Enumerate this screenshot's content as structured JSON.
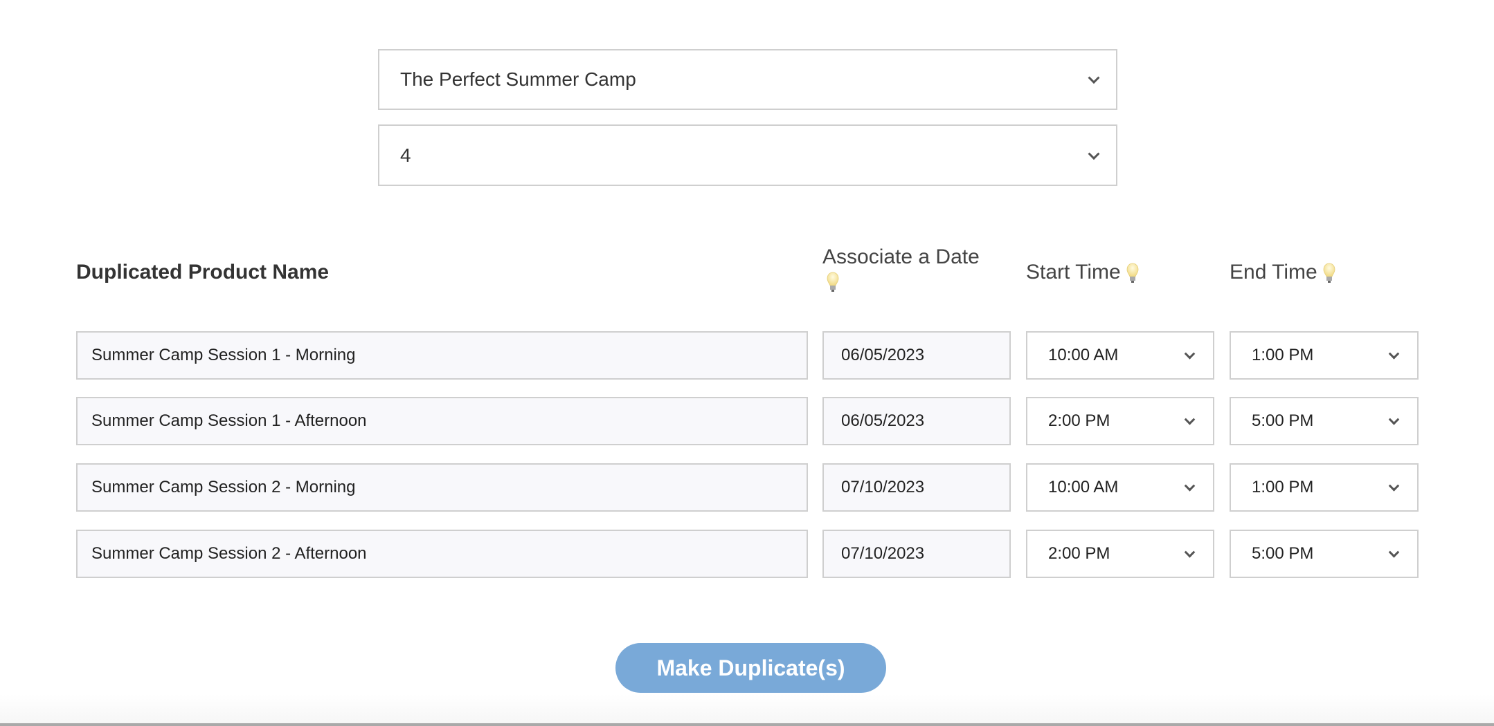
{
  "product_select": {
    "value": "The Perfect Summer Camp"
  },
  "count_select": {
    "value": "4"
  },
  "headers": {
    "name": "Duplicated Product Name",
    "date": "Associate a Date",
    "start": "Start Time",
    "end": "End Time"
  },
  "rows": [
    {
      "name": "Summer Camp Session 1 - Morning",
      "date": "06/05/2023",
      "start": "10:00 AM",
      "end": "1:00 PM"
    },
    {
      "name": "Summer Camp Session 1 - Afternoon",
      "date": "06/05/2023",
      "start": "2:00 PM",
      "end": "5:00 PM"
    },
    {
      "name": "Summer Camp Session 2 - Morning",
      "date": "07/10/2023",
      "start": "10:00 AM",
      "end": "1:00 PM"
    },
    {
      "name": "Summer Camp Session 2 - Afternoon",
      "date": "07/10/2023",
      "start": "2:00 PM",
      "end": "5:00 PM"
    }
  ],
  "submit_label": "Make Duplicate(s)",
  "colors": {
    "button": "#79a9d8",
    "input_bg": "#f8f8fb",
    "border": "#cfcfcf"
  }
}
